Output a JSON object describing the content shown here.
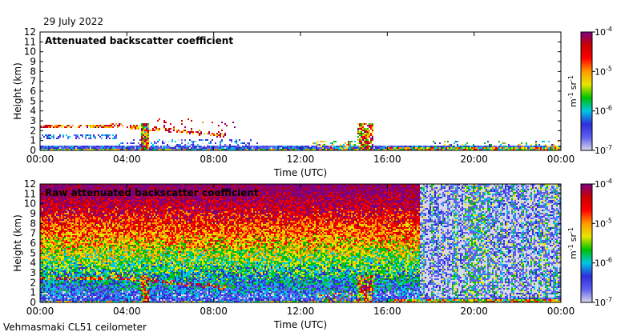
{
  "date_text": "29 July 2022",
  "footer_text": "Vehmasmaki CL51 ceilometer",
  "chart_data": [
    {
      "type": "heatmap",
      "title": "Attenuated backscatter coefficient",
      "xlabel": "Time (UTC)",
      "ylabel": "Height (km)",
      "x_ticks": [
        "00:00",
        "04:00",
        "08:00",
        "12:00",
        "16:00",
        "20:00",
        "00:00"
      ],
      "y_ticks": [
        0,
        1,
        2,
        3,
        4,
        5,
        6,
        7,
        8,
        9,
        10,
        11,
        12
      ],
      "xlim_hours": [
        0,
        24
      ],
      "ylim_km": [
        0,
        12
      ],
      "colorbar": {
        "scale": "log",
        "range": [
          1e-07,
          0.0001
        ],
        "ticks": [
          {
            "base": "10",
            "exp": "-4",
            "value": 0.0001
          },
          {
            "base": "10",
            "exp": "-5",
            "value": 1e-05
          },
          {
            "base": "10",
            "exp": "-6",
            "value": 1e-06
          },
          {
            "base": "10",
            "exp": "-7",
            "value": 1e-07
          }
        ],
        "unit": {
          "m": "m",
          "m_exp": "-1",
          "sr": "sr",
          "sr_exp": "-1"
        },
        "colors": [
          "#d8d8ec",
          "#5e5ef0",
          "#2f2fd8",
          "#00c8e6",
          "#00c000",
          "#e6e600",
          "#ff9900",
          "#ff0000",
          "#c80000",
          "#800080"
        ]
      },
      "features_description": [
        {
          "kind": "boundary_layer",
          "hours": [
            0,
            24
          ],
          "height_km": [
            0,
            0.6
          ],
          "level": "low"
        },
        {
          "kind": "cloud_layer",
          "hours": [
            0,
            3.2
          ],
          "height_km": [
            2.3,
            2.6
          ],
          "level": "high"
        },
        {
          "kind": "cloud_layer",
          "hours": [
            3.2,
            8.5
          ],
          "height_km": [
            1.0,
            2.8
          ],
          "level": "high"
        },
        {
          "kind": "precipitation_column",
          "hours": [
            4.6,
            5.0
          ],
          "height_km": [
            0,
            2.7
          ],
          "level": "high"
        },
        {
          "kind": "precipitation_column",
          "hours": [
            14.6,
            15.3
          ],
          "height_km": [
            0,
            2.7
          ],
          "level": "high"
        }
      ]
    },
    {
      "type": "heatmap",
      "title": "Raw attenuated backscatter coefficient",
      "xlabel": "Time (UTC)",
      "ylabel": "Height (km)",
      "x_ticks": [
        "00:00",
        "04:00",
        "08:00",
        "12:00",
        "16:00",
        "20:00",
        "00:00"
      ],
      "y_ticks": [
        0,
        1,
        2,
        3,
        4,
        5,
        6,
        7,
        8,
        9,
        10,
        11,
        12
      ],
      "xlim_hours": [
        0,
        24
      ],
      "ylim_km": [
        0,
        12
      ],
      "colorbar": {
        "scale": "log",
        "range": [
          1e-07,
          0.0001
        ],
        "ticks": [
          {
            "base": "10",
            "exp": "-4",
            "value": 0.0001
          },
          {
            "base": "10",
            "exp": "-5",
            "value": 1e-05
          },
          {
            "base": "10",
            "exp": "-6",
            "value": 1e-06
          },
          {
            "base": "10",
            "exp": "-7",
            "value": 1e-07
          }
        ],
        "unit": {
          "m": "m",
          "m_exp": "-1",
          "sr": "sr",
          "sr_exp": "-1"
        },
        "colors": [
          "#d8d8ec",
          "#5e5ef0",
          "#2f2fd8",
          "#00c8e6",
          "#00c000",
          "#e6e600",
          "#ff9900",
          "#ff0000",
          "#c80000",
          "#800080"
        ]
      },
      "features_description": [
        {
          "kind": "noise_field",
          "hours": [
            0,
            18
          ],
          "height_km": [
            0,
            12
          ],
          "level": "high_aloft_decreasing_downward"
        },
        {
          "kind": "noise_field",
          "hours": [
            18,
            24
          ],
          "height_km": [
            0,
            12
          ],
          "level": "low_with_vertical_streaks"
        },
        {
          "kind": "cloud_layer",
          "hours": [
            0,
            8.5
          ],
          "height_km": [
            1.0,
            2.8
          ],
          "level": "high"
        },
        {
          "kind": "precipitation_column",
          "hours": [
            4.6,
            5.0
          ],
          "height_km": [
            0,
            2.7
          ],
          "level": "high"
        },
        {
          "kind": "precipitation_column",
          "hours": [
            14.6,
            15.3
          ],
          "height_km": [
            0,
            2.7
          ],
          "level": "high"
        }
      ]
    }
  ]
}
